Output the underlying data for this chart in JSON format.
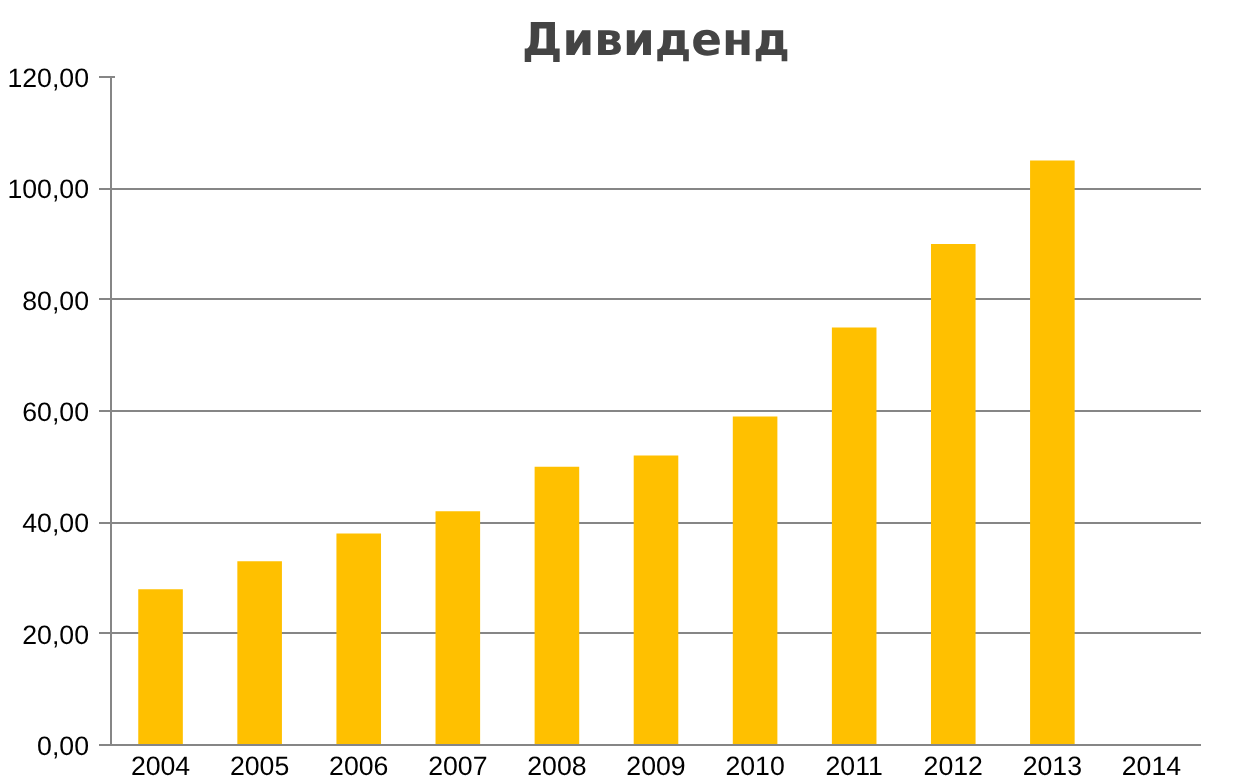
{
  "chart_data": {
    "type": "bar",
    "title": "Дивиденд",
    "categories": [
      "2004",
      "2005",
      "2006",
      "2007",
      "2008",
      "2009",
      "2010",
      "2011",
      "2012",
      "2013",
      "2014"
    ],
    "values": [
      28,
      33,
      38,
      42,
      50,
      52,
      59,
      75,
      90,
      105,
      null
    ],
    "color": "#ffc000",
    "ylim": [
      0,
      120
    ],
    "yticks": [
      {
        "value": 0,
        "label": "0,00"
      },
      {
        "value": 20,
        "label": "20,00"
      },
      {
        "value": 40,
        "label": "40,00"
      },
      {
        "value": 60,
        "label": "60,00"
      },
      {
        "value": 80,
        "label": "80,00"
      },
      {
        "value": 100,
        "label": "100,00"
      },
      {
        "value": 120,
        "label": "120,00"
      }
    ],
    "grid": "y"
  }
}
